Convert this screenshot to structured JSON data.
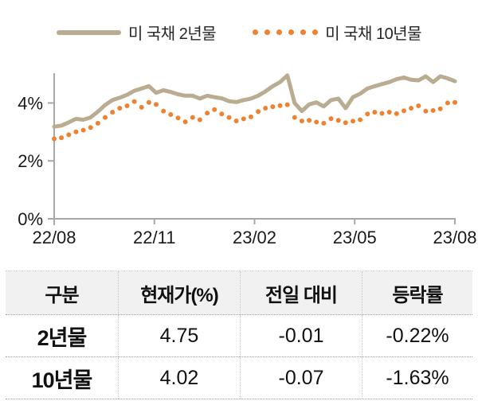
{
  "legend": {
    "series_2yr_label": "미 국채 2년물",
    "series_10yr_label": "미 국채 10년물"
  },
  "chart_data": {
    "type": "line",
    "title": "",
    "xlabel": "",
    "ylabel": "",
    "x_axis": {
      "tick_labels": [
        "22/08",
        "22/11",
        "23/02",
        "23/05",
        "23/08"
      ]
    },
    "y_axis": {
      "tick_labels": [
        "0%",
        "2%",
        "4%"
      ],
      "tick_values": [
        0,
        2,
        4
      ],
      "range": [
        0,
        5
      ]
    },
    "grid": false,
    "legend_position": "top",
    "axis_color": "#a8a8a8",
    "series": [
      {
        "name": "미 국채 2년물",
        "style": "solid",
        "color": "#b9ac90",
        "values": [
          3.18,
          3.22,
          3.33,
          3.45,
          3.42,
          3.5,
          3.7,
          3.93,
          4.1,
          4.18,
          4.28,
          4.42,
          4.5,
          4.58,
          4.35,
          4.44,
          4.38,
          4.3,
          4.25,
          4.25,
          4.15,
          4.25,
          4.2,
          4.16,
          4.06,
          4.03,
          4.1,
          4.15,
          4.25,
          4.4,
          4.58,
          4.72,
          4.95,
          4.0,
          3.72,
          3.95,
          4.02,
          3.88,
          4.1,
          4.15,
          3.82,
          4.2,
          4.32,
          4.5,
          4.58,
          4.65,
          4.72,
          4.82,
          4.88,
          4.8,
          4.78,
          4.92,
          4.72,
          4.92,
          4.85,
          4.75
        ]
      },
      {
        "name": "미 국채 10년물",
        "style": "dotted",
        "color": "#ef8230",
        "values": [
          2.76,
          2.8,
          2.9,
          3.0,
          3.06,
          3.15,
          3.3,
          3.5,
          3.68,
          3.82,
          3.9,
          4.05,
          3.85,
          4.02,
          3.95,
          3.72,
          3.6,
          3.48,
          3.35,
          3.5,
          3.42,
          3.65,
          3.77,
          3.62,
          3.5,
          3.38,
          3.45,
          3.52,
          3.7,
          3.82,
          3.87,
          3.91,
          3.94,
          3.5,
          3.38,
          3.4,
          3.34,
          3.3,
          3.46,
          3.4,
          3.32,
          3.37,
          3.42,
          3.62,
          3.68,
          3.64,
          3.68,
          3.63,
          3.73,
          3.82,
          3.9,
          3.72,
          3.74,
          3.8,
          4.0,
          4.02
        ]
      }
    ]
  },
  "table": {
    "headers": [
      "구분",
      "현재가(%)",
      "전일 대비",
      "등락률"
    ],
    "rows": [
      {
        "label": "2년물",
        "current": "4.75",
        "change": "-0.01",
        "pct": "-0.22%"
      },
      {
        "label": "10년물",
        "current": "4.02",
        "change": "-0.07",
        "pct": "-1.63%"
      }
    ]
  }
}
